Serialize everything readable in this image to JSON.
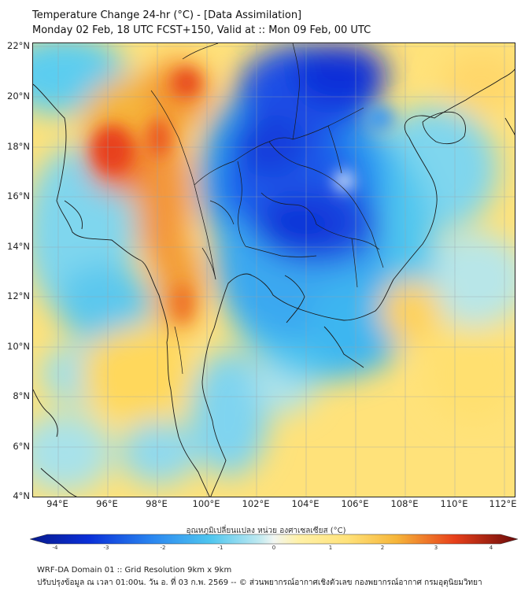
{
  "title_line1": "Temperature Change 24-hr (°C) - [Data Assimilation]",
  "title_line2": "Monday 02 Feb, 18 UTC FCST+150, Valid at :: Mon 09 Feb, 00 UTC",
  "lat_labels": [
    "22°N",
    "20°N",
    "18°N",
    "16°N",
    "14°N",
    "12°N",
    "10°N",
    "8°N",
    "6°N",
    "4°N"
  ],
  "lon_labels": [
    "94°E",
    "96°E",
    "98°E",
    "100°E",
    "102°E",
    "104°E",
    "106°E",
    "108°E",
    "110°E",
    "112°E"
  ],
  "colorbar": {
    "title": "อุณหภูมิเปลี่ยนแปลง หน่วย องศาเซลเซียส (°C)",
    "ticks": [
      "-4",
      "-3",
      "-2",
      "-1",
      "0",
      "1",
      "2",
      "3",
      "4"
    ],
    "min": -4,
    "max": 4
  },
  "footer_line1": "WRF-DA Domain 01 :: Grid Resolution 9km x 9km",
  "footer_line2": "ปรับปรุงข้อมูล ณ เวลา 01:00น. วัน อ. ที่ 03 ก.พ. 2569 -- © ส่วนพยากรณ์อากาศเชิงตัวเลข กองพยากรณ์อากาศ กรมอุตุนิยมวิทยา",
  "colors": {
    "cold_deep": "#0a2fd8",
    "cold_mid": "#2a86f0",
    "cold_light": "#4fc6ef",
    "neutral": "#e8f4f0",
    "warm_light": "#ffe27a",
    "warm_mid": "#f6b63a",
    "warm_hot": "#e8401a",
    "coast": "#1a1a1a"
  }
}
